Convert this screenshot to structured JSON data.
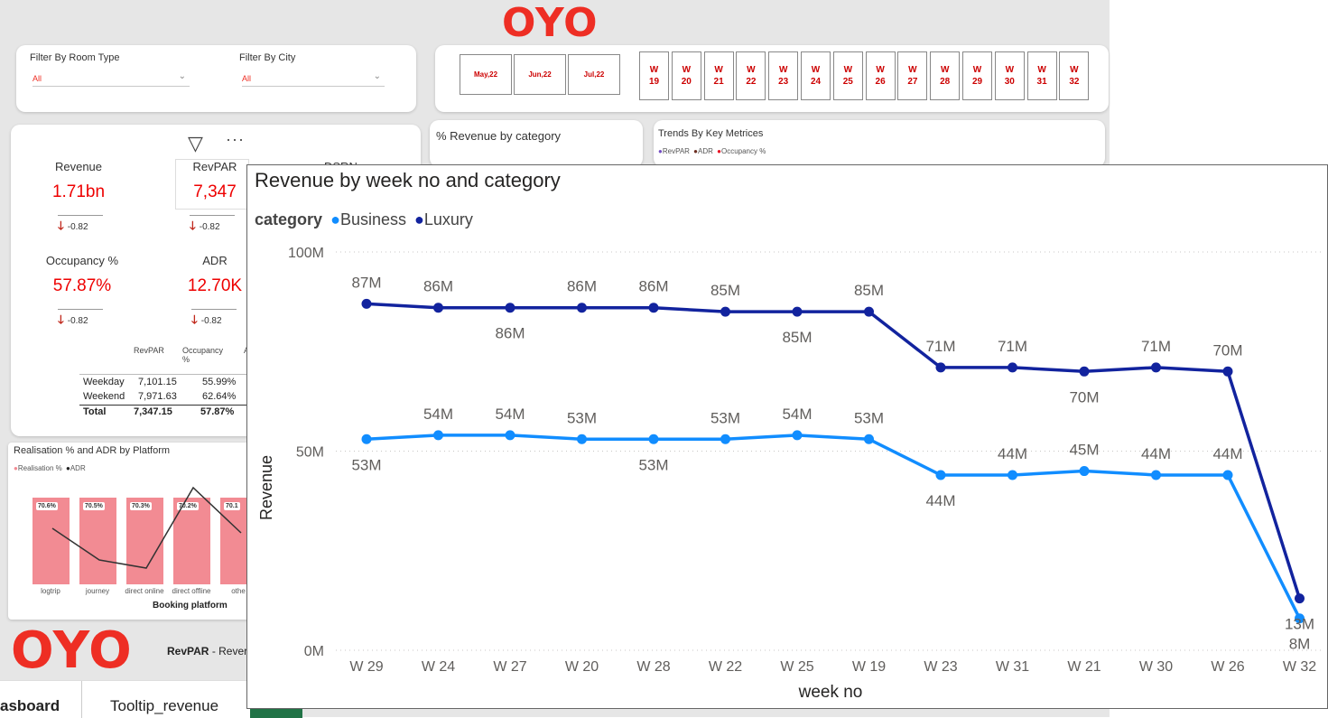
{
  "brand": {
    "logo_text": "OYO",
    "accent": "#ee2e24"
  },
  "filters": {
    "room_type": {
      "label": "Filter By Room Type",
      "value": "All"
    },
    "city": {
      "label": "Filter By City",
      "value": "All"
    }
  },
  "months": [
    "May,22",
    "Jun,22",
    "Jul,22"
  ],
  "weeks": [
    "19",
    "20",
    "21",
    "22",
    "23",
    "24",
    "25",
    "26",
    "27",
    "28",
    "29",
    "30",
    "31",
    "32"
  ],
  "week_prefix": "W",
  "kpis": {
    "revenue": {
      "label": "Revenue",
      "value": "1.71bn",
      "delta": "-0.82"
    },
    "revpar": {
      "label": "RevPAR",
      "value": "7,347",
      "delta": "-0.82"
    },
    "dsrn": {
      "label": "DSRN"
    },
    "occupancy": {
      "label": "Occupancy %",
      "value": "57.87%",
      "delta": "-0.82"
    },
    "adr": {
      "label": "ADR",
      "value": "12.70K",
      "delta": "-0.82"
    }
  },
  "summary_table": {
    "headers": [
      "RevPAR",
      "Occupancy %",
      "A"
    ],
    "rows": [
      {
        "label": "Weekday",
        "revpar": "7,101.15",
        "occ": "55.99%"
      },
      {
        "label": "Weekend",
        "revpar": "7,971.63",
        "occ": "62.64%"
      },
      {
        "label": "Total",
        "revpar": "7,347.15",
        "occ": "57.87%"
      }
    ]
  },
  "cards": {
    "revenue_by_category": "% Revenue by category",
    "trends": {
      "title": "Trends By Key Metrices",
      "legend": [
        "RevPAR",
        "ADR",
        "Occupancy %"
      ]
    },
    "realisation": {
      "title": "Realisation % and ADR by Platform",
      "legend": [
        "Realisation %",
        "ADR"
      ],
      "xlabel": "Booking platform",
      "bars": [
        {
          "platform": "logtrip",
          "value": "70.6%"
        },
        {
          "platform": "journey",
          "value": "70.5%"
        },
        {
          "platform": "direct online",
          "value": "70.3%"
        },
        {
          "platform": "direct offline",
          "value": "70.2%"
        },
        {
          "platform": "othe",
          "value": "70.1"
        }
      ]
    }
  },
  "bottom": {
    "revpar_caption": "RevPAR",
    "revpar_suffix": "- Rever"
  },
  "tabs": [
    "asboard",
    "Tooltip_revenue"
  ],
  "chart_data": {
    "type": "line",
    "title": "Revenue by week no and category",
    "legend_title": "category",
    "xlabel": "week no",
    "ylabel": "Revenue",
    "ylim": [
      0,
      100
    ],
    "y_ticks": [
      "0M",
      "50M",
      "100M"
    ],
    "categories": [
      "W 29",
      "W 24",
      "W 27",
      "W 20",
      "W 28",
      "W 22",
      "W 25",
      "W 19",
      "W 23",
      "W 31",
      "W 21",
      "W 30",
      "W 26",
      "W 32"
    ],
    "series": [
      {
        "name": "Business",
        "color": "#118dff",
        "values": [
          53,
          54,
          54,
          53,
          53,
          53,
          54,
          53,
          44,
          44,
          45,
          44,
          44,
          8
        ],
        "labels": [
          "53M",
          "54M",
          "54M",
          "53M",
          "53M",
          "53M",
          "54M",
          "53M",
          "44M",
          "44M",
          "45M",
          "44M",
          "44M",
          "8M"
        ]
      },
      {
        "name": "Luxury",
        "color": "#12239e",
        "values": [
          87,
          86,
          86,
          86,
          86,
          85,
          85,
          85,
          71,
          71,
          70,
          71,
          70,
          13
        ],
        "labels": [
          "87M",
          "86M",
          "86M",
          "86M",
          "86M",
          "85M",
          "85M",
          "85M",
          "71M",
          "71M",
          "70M",
          "71M",
          "70M",
          "13M"
        ]
      }
    ]
  }
}
